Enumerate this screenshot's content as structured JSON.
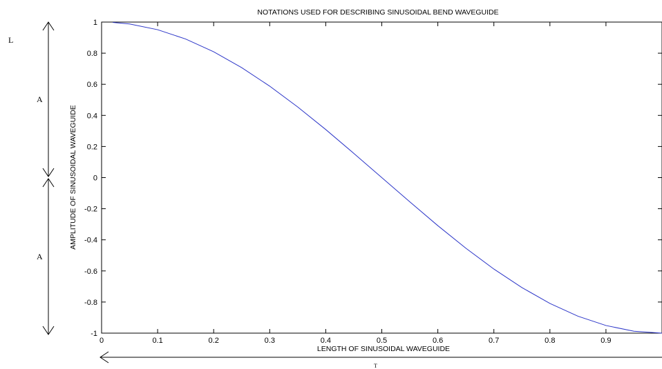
{
  "chart_data": {
    "type": "line",
    "title": "NOTATIONS USED FOR DESCRIBING SINUSOIDAL BEND WAVEGUIDE",
    "xlabel": "LENGTH OF SINUSOIDAL WAVEGUIDE",
    "ylabel": "AMPLITUDE OF SINUSOIDAL WAVEGUIDE",
    "xlim": [
      0,
      1
    ],
    "ylim": [
      -1,
      1
    ],
    "xticks": [
      "0",
      "0.1",
      "0.2",
      "0.3",
      "0.4",
      "0.5",
      "0.6",
      "0.7",
      "0.8",
      "0.9"
    ],
    "yticks": [
      "1",
      "0.8",
      "0.6",
      "0.4",
      "0.2",
      "0",
      "-0.2",
      "-0.4",
      "-0.6",
      "-0.8",
      "-1"
    ],
    "grid": false,
    "series": [
      {
        "color": "#2b35c8",
        "x": [
          0.02,
          0.05,
          0.1,
          0.15,
          0.2,
          0.25,
          0.3,
          0.35,
          0.4,
          0.45,
          0.5,
          0.55,
          0.6,
          0.65,
          0.7,
          0.75,
          0.8,
          0.85,
          0.9,
          0.95,
          1.0
        ],
        "y": [
          0.998,
          0.988,
          0.951,
          0.891,
          0.809,
          0.707,
          0.588,
          0.454,
          0.309,
          0.156,
          0.0,
          -0.156,
          -0.309,
          -0.454,
          -0.588,
          -0.707,
          -0.809,
          -0.891,
          -0.951,
          -0.988,
          -1.0
        ]
      }
    ]
  },
  "annotations": {
    "left_L": "L",
    "upper_A": "A",
    "lower_A": "A",
    "bottom_T": "T"
  }
}
